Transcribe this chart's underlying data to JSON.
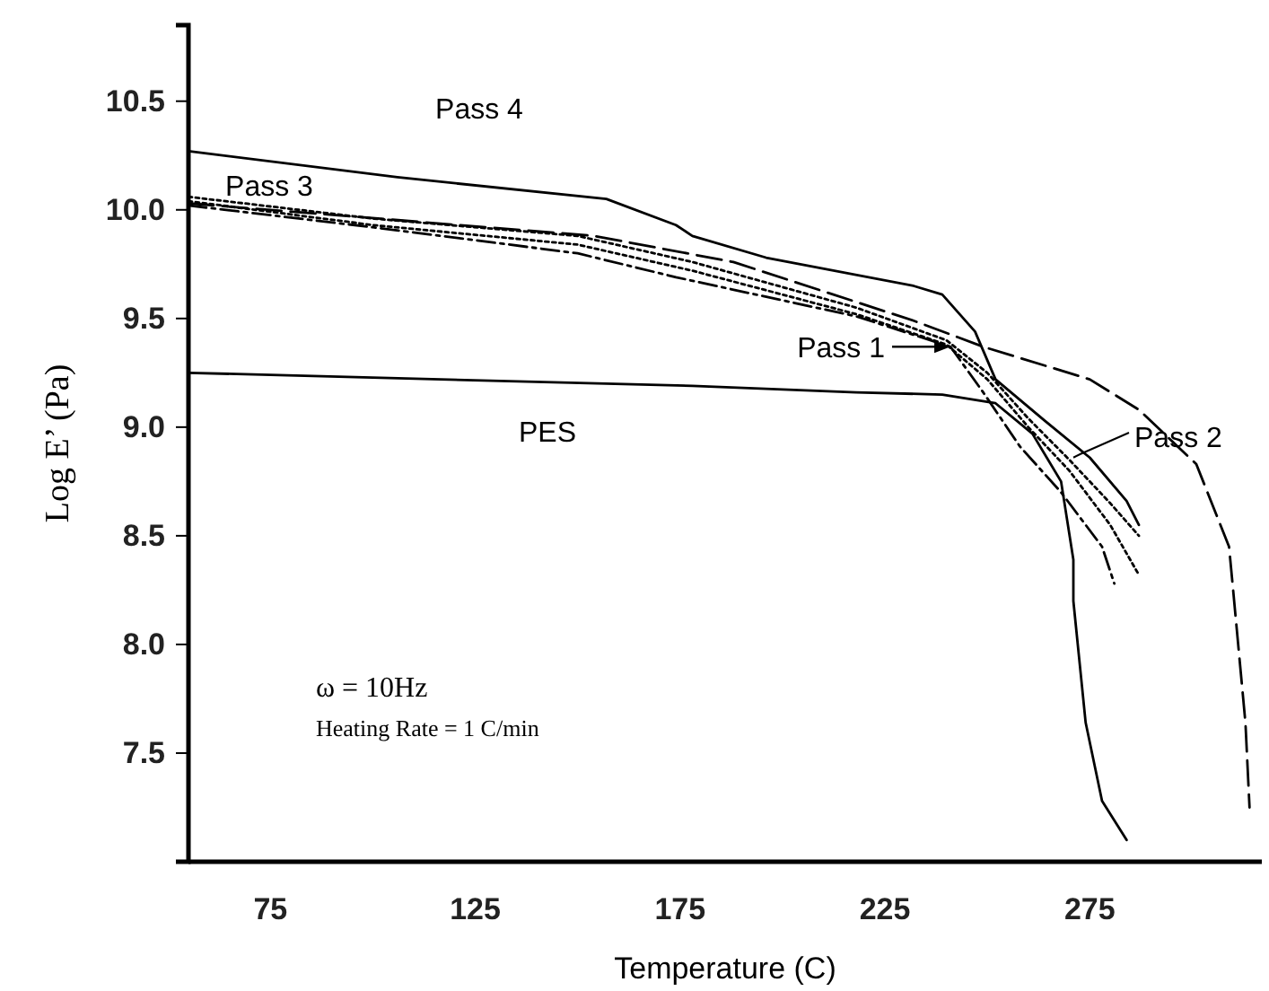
{
  "chart_data": {
    "type": "line",
    "xlabel": "Temperature (C)",
    "ylabel": "Log E’ (Pa)",
    "xlim": [
      55,
      317
    ],
    "ylim": [
      7.0,
      10.85
    ],
    "xticks": [
      75,
      125,
      175,
      225,
      275
    ],
    "yticks": [
      7.5,
      {
        "value": 8,
        "label": "8.0"
      },
      8.5,
      {
        "value": 9,
        "label": "9.0"
      },
      9.5,
      {
        "value": 10,
        "label": "10.0"
      },
      10.5
    ],
    "grid": false,
    "marker": "none",
    "annotations": [
      "ω = 10Hz",
      "Heating Rate = 1 C/min",
      {
        "text": "Pass 4",
        "x": 135,
        "y": 10.09
      },
      {
        "text": "Pass 3",
        "x": 100,
        "y": 9.96
      },
      {
        "text": "Pass 1",
        "x": 241,
        "y": 9.37
      },
      {
        "text": "Pass 2",
        "x": 271,
        "y": 8.86
      },
      "PES"
    ],
    "series": [
      {
        "color": "#000000",
        "line_style": "solid",
        "x": [
          55,
          106,
          157,
          174,
          178,
          196,
          232,
          239,
          247,
          252,
          264,
          275,
          284,
          287
        ],
        "values": [
          10.27,
          10.15,
          10.05,
          9.93,
          9.88,
          9.78,
          9.65,
          9.61,
          9.44,
          9.22,
          9.03,
          8.86,
          8.66,
          8.55
        ]
      },
      {
        "color": "#000000",
        "line_style": "dotted",
        "x": [
          55,
          100,
          150,
          178,
          218,
          240,
          250,
          260,
          270,
          280,
          287
        ],
        "values": [
          10.06,
          9.96,
          9.88,
          9.76,
          9.55,
          9.4,
          9.25,
          9.04,
          8.85,
          8.65,
          8.5
        ]
      },
      {
        "color": "#000000",
        "line_style": "dashdot",
        "x": [
          55,
          100,
          150,
          174,
          218,
          241,
          249,
          258,
          268,
          278,
          281
        ],
        "values": [
          10.02,
          9.92,
          9.8,
          9.69,
          9.51,
          9.37,
          9.16,
          8.91,
          8.7,
          8.45,
          8.28
        ]
      },
      {
        "color": "#000000",
        "line_style": "dotted",
        "x": [
          55,
          100,
          150,
          178,
          218,
          240,
          250,
          260,
          270,
          280,
          287
        ],
        "values": [
          10.04,
          9.93,
          9.84,
          9.72,
          9.52,
          9.38,
          9.22,
          9.0,
          8.8,
          8.55,
          8.32
        ]
      },
      {
        "color": "#000000",
        "line_style": "solid",
        "x": [
          55,
          178,
          218,
          239,
          252,
          261,
          268,
          271,
          271,
          274,
          278,
          284
        ],
        "values": [
          9.25,
          9.19,
          9.16,
          9.15,
          9.11,
          8.97,
          8.75,
          8.39,
          8.2,
          7.64,
          7.28,
          7.1
        ]
      },
      {
        "color": "#000000",
        "line_style": "dashed",
        "x": [
          55,
          154,
          188,
          232,
          249,
          275,
          287,
          301,
          309,
          310,
          313,
          314
        ],
        "values": [
          10.03,
          9.88,
          9.76,
          9.49,
          9.37,
          9.22,
          9.08,
          8.83,
          8.45,
          8.25,
          7.64,
          7.25
        ]
      }
    ]
  }
}
